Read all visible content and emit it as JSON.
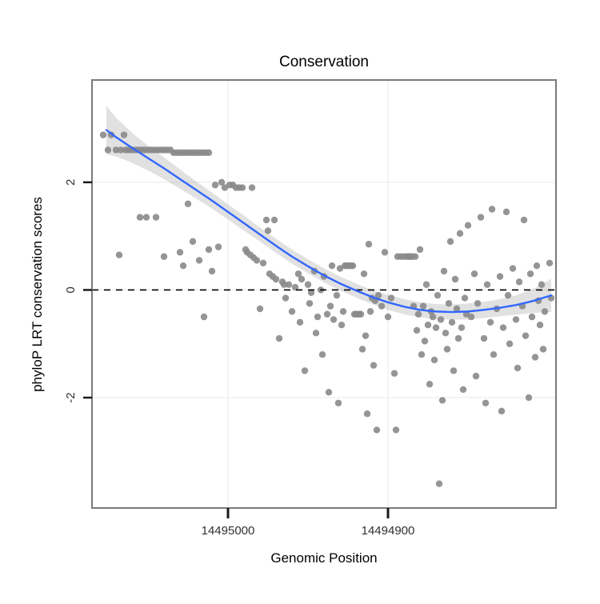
{
  "chart_data": {
    "type": "scatter",
    "title": "Conservation",
    "xlabel": "Genomic Position",
    "ylabel": "phyloP LRT conservation scores",
    "x_axis": {
      "reversed": true,
      "domain": [
        14495085,
        14494795
      ],
      "ticks": [
        {
          "value": 14495000,
          "label": "14495000"
        },
        {
          "value": 14494900,
          "label": "14494900"
        }
      ]
    },
    "y_axis": {
      "domain": [
        -4.05,
        3.9
      ],
      "ticks": [
        {
          "value": 2,
          "label": "2"
        },
        {
          "value": 0,
          "label": "0"
        },
        {
          "value": -2,
          "label": "-2"
        }
      ]
    },
    "reference_line": {
      "y": 0,
      "style": "dashed",
      "color": "#000000"
    },
    "colors": {
      "point": "#8a8a8a",
      "smooth_line": "#3366ff",
      "ribbon": "#9a9a9a",
      "ribbon_opacity": 0.3,
      "grid_major": "#ededed",
      "panel_border": "#7a7a7a",
      "tick": "#1a1a1a"
    },
    "points": [
      [
        14495078,
        2.88
      ],
      [
        14495075,
        2.6
      ],
      [
        14495073,
        2.88
      ],
      [
        14495070,
        2.6
      ],
      [
        14495068,
        0.65
      ],
      [
        14495067,
        2.6
      ],
      [
        14495065,
        2.88
      ],
      [
        14495064,
        2.6
      ],
      [
        14495062,
        2.6
      ],
      [
        14495060,
        2.6
      ],
      [
        14495058,
        2.6
      ],
      [
        14495056,
        2.6
      ],
      [
        14495055,
        1.35
      ],
      [
        14495054,
        2.6
      ],
      [
        14495052,
        2.6
      ],
      [
        14495051,
        1.35
      ],
      [
        14495050,
        2.6
      ],
      [
        14495048,
        2.6
      ],
      [
        14495046,
        2.6
      ],
      [
        14495045,
        1.35
      ],
      [
        14495044,
        2.6
      ],
      [
        14495042,
        2.6
      ],
      [
        14495040,
        0.62
      ],
      [
        14495040,
        2.6
      ],
      [
        14495038,
        2.6
      ],
      [
        14495036,
        2.6
      ],
      [
        14495034,
        2.55
      ],
      [
        14495032,
        2.55
      ],
      [
        14495030,
        2.55
      ],
      [
        14495028,
        2.55
      ],
      [
        14495026,
        2.55
      ],
      [
        14495024,
        2.55
      ],
      [
        14495022,
        2.55
      ],
      [
        14495020,
        2.55
      ],
      [
        14495018,
        2.55
      ],
      [
        14495016,
        2.55
      ],
      [
        14495014,
        2.55
      ],
      [
        14495012,
        2.55
      ],
      [
        14495030,
        0.7
      ],
      [
        14495028,
        0.45
      ],
      [
        14495025,
        1.6
      ],
      [
        14495022,
        0.9
      ],
      [
        14495018,
        0.55
      ],
      [
        14495015,
        -0.5
      ],
      [
        14495012,
        0.75
      ],
      [
        14495010,
        0.35
      ],
      [
        14495008,
        1.95
      ],
      [
        14495006,
        0.8
      ],
      [
        14495004,
        2.0
      ],
      [
        14495002,
        1.9
      ],
      [
        14494999,
        1.95
      ],
      [
        14494997,
        1.95
      ],
      [
        14494995,
        1.9
      ],
      [
        14494993,
        1.9
      ],
      [
        14494991,
        1.9
      ],
      [
        14494989,
        0.75
      ],
      [
        14494988,
        0.7
      ],
      [
        14494986,
        0.65
      ],
      [
        14494985,
        1.9
      ],
      [
        14494984,
        0.6
      ],
      [
        14494982,
        0.55
      ],
      [
        14494980,
        -0.35
      ],
      [
        14494978,
        0.5
      ],
      [
        14494976,
        1.3
      ],
      [
        14494975,
        1.1
      ],
      [
        14494974,
        0.3
      ],
      [
        14494972,
        0.25
      ],
      [
        14494971,
        1.3
      ],
      [
        14494970,
        0.2
      ],
      [
        14494968,
        -0.9
      ],
      [
        14494966,
        0.15
      ],
      [
        14494965,
        0.1
      ],
      [
        14494964,
        -0.15
      ],
      [
        14494962,
        0.1
      ],
      [
        14494960,
        -0.4
      ],
      [
        14494958,
        0.05
      ],
      [
        14494956,
        0.3
      ],
      [
        14494955,
        -0.6
      ],
      [
        14494954,
        0.2
      ],
      [
        14494952,
        -1.5
      ],
      [
        14494950,
        0.1
      ],
      [
        14494949,
        -0.25
      ],
      [
        14494948,
        -0.05
      ],
      [
        14494946,
        0.35
      ],
      [
        14494945,
        -0.8
      ],
      [
        14494944,
        -0.5
      ],
      [
        14494942,
        0.0
      ],
      [
        14494941,
        -1.2
      ],
      [
        14494940,
        0.25
      ],
      [
        14494938,
        -0.45
      ],
      [
        14494937,
        -1.9
      ],
      [
        14494936,
        -0.3
      ],
      [
        14494935,
        0.45
      ],
      [
        14494934,
        -0.55
      ],
      [
        14494932,
        -0.1
      ],
      [
        14494931,
        -2.1
      ],
      [
        14494930,
        0.4
      ],
      [
        14494929,
        -0.65
      ],
      [
        14494928,
        -0.4
      ],
      [
        14494927,
        0.45
      ],
      [
        14494926,
        0.45
      ],
      [
        14494925,
        0.45
      ],
      [
        14494924,
        0.45
      ],
      [
        14494923,
        0.45
      ],
      [
        14494922,
        0.45
      ],
      [
        14494921,
        -0.45
      ],
      [
        14494920,
        -0.45
      ],
      [
        14494919,
        -0.45
      ],
      [
        14494918,
        -0.45
      ],
      [
        14494917,
        -0.45
      ],
      [
        14494916,
        -1.1
      ],
      [
        14494915,
        0.3
      ],
      [
        14494914,
        -0.85
      ],
      [
        14494913,
        -2.3
      ],
      [
        14494912,
        0.85
      ],
      [
        14494911,
        -0.4
      ],
      [
        14494910,
        -0.15
      ],
      [
        14494909,
        -1.4
      ],
      [
        14494908,
        -0.2
      ],
      [
        14494907,
        -2.6
      ],
      [
        14494906,
        -0.1
      ],
      [
        14494904,
        -0.3
      ],
      [
        14494902,
        0.7
      ],
      [
        14494900,
        -0.5
      ],
      [
        14494898,
        -0.15
      ],
      [
        14494896,
        -1.55
      ],
      [
        14494895,
        -2.6
      ],
      [
        14494894,
        0.62
      ],
      [
        14494892,
        0.62
      ],
      [
        14494890,
        0.62
      ],
      [
        14494888,
        0.62
      ],
      [
        14494887,
        0.62
      ],
      [
        14494886,
        0.62
      ],
      [
        14494885,
        0.62
      ],
      [
        14494884,
        -0.3
      ],
      [
        14494883,
        0.62
      ],
      [
        14494882,
        -0.75
      ],
      [
        14494881,
        -0.45
      ],
      [
        14494880,
        0.75
      ],
      [
        14494879,
        -1.2
      ],
      [
        14494878,
        -0.3
      ],
      [
        14494877,
        -0.95
      ],
      [
        14494876,
        0.1
      ],
      [
        14494875,
        -0.65
      ],
      [
        14494874,
        -1.75
      ],
      [
        14494873,
        -0.4
      ],
      [
        14494872,
        -0.5
      ],
      [
        14494871,
        -1.3
      ],
      [
        14494870,
        -0.7
      ],
      [
        14494869,
        -0.1
      ],
      [
        14494868,
        -3.6
      ],
      [
        14494867,
        -0.55
      ],
      [
        14494866,
        -2.05
      ],
      [
        14494865,
        0.35
      ],
      [
        14494864,
        -0.8
      ],
      [
        14494863,
        -1.1
      ],
      [
        14494862,
        -0.25
      ],
      [
        14494861,
        0.9
      ],
      [
        14494860,
        -0.6
      ],
      [
        14494859,
        -1.5
      ],
      [
        14494858,
        0.2
      ],
      [
        14494857,
        -0.35
      ],
      [
        14494856,
        -0.9
      ],
      [
        14494855,
        1.05
      ],
      [
        14494854,
        -0.7
      ],
      [
        14494853,
        -1.85
      ],
      [
        14494852,
        -0.15
      ],
      [
        14494851,
        -0.45
      ],
      [
        14494850,
        1.2
      ],
      [
        14494848,
        -0.5
      ],
      [
        14494846,
        0.3
      ],
      [
        14494845,
        -1.6
      ],
      [
        14494844,
        -0.25
      ],
      [
        14494842,
        1.35
      ],
      [
        14494840,
        -0.9
      ],
      [
        14494839,
        -2.1
      ],
      [
        14494838,
        0.1
      ],
      [
        14494836,
        -0.6
      ],
      [
        14494835,
        1.5
      ],
      [
        14494834,
        -1.2
      ],
      [
        14494832,
        -0.35
      ],
      [
        14494830,
        0.25
      ],
      [
        14494829,
        -2.25
      ],
      [
        14494828,
        -0.7
      ],
      [
        14494826,
        1.45
      ],
      [
        14494825,
        -0.1
      ],
      [
        14494824,
        -1.0
      ],
      [
        14494822,
        0.4
      ],
      [
        14494820,
        -0.55
      ],
      [
        14494819,
        -1.45
      ],
      [
        14494818,
        0.15
      ],
      [
        14494816,
        -0.3
      ],
      [
        14494815,
        1.3
      ],
      [
        14494814,
        -0.85
      ],
      [
        14494812,
        -2.0
      ],
      [
        14494811,
        0.3
      ],
      [
        14494810,
        -0.5
      ],
      [
        14494808,
        -1.25
      ],
      [
        14494807,
        0.45
      ],
      [
        14494806,
        -0.2
      ],
      [
        14494805,
        -0.65
      ],
      [
        14494804,
        0.1
      ],
      [
        14494803,
        -1.1
      ],
      [
        14494802,
        -0.4
      ],
      [
        14494799,
        0.5
      ],
      [
        14494798,
        -0.15
      ]
    ],
    "smooth": {
      "line": [
        [
          14495076,
          2.97
        ],
        [
          14495070,
          2.84
        ],
        [
          14495060,
          2.64
        ],
        [
          14495050,
          2.45
        ],
        [
          14495040,
          2.26
        ],
        [
          14495030,
          2.06
        ],
        [
          14495020,
          1.86
        ],
        [
          14495010,
          1.66
        ],
        [
          14495000,
          1.45
        ],
        [
          14494990,
          1.24
        ],
        [
          14494980,
          1.03
        ],
        [
          14494970,
          0.82
        ],
        [
          14494960,
          0.62
        ],
        [
          14494950,
          0.44
        ],
        [
          14494940,
          0.27
        ],
        [
          14494930,
          0.12
        ],
        [
          14494920,
          -0.01
        ],
        [
          14494910,
          -0.13
        ],
        [
          14494900,
          -0.23
        ],
        [
          14494890,
          -0.31
        ],
        [
          14494880,
          -0.37
        ],
        [
          14494870,
          -0.4
        ],
        [
          14494860,
          -0.41
        ],
        [
          14494850,
          -0.4
        ],
        [
          14494840,
          -0.37
        ],
        [
          14494830,
          -0.33
        ],
        [
          14494820,
          -0.28
        ],
        [
          14494810,
          -0.21
        ],
        [
          14494800,
          -0.12
        ],
        [
          14494798,
          -0.1
        ]
      ],
      "ribbon_halfwidth": [
        0.45,
        0.36,
        0.28,
        0.23,
        0.2,
        0.18,
        0.16,
        0.15,
        0.14,
        0.14,
        0.13,
        0.13,
        0.13,
        0.13,
        0.13,
        0.13,
        0.13,
        0.13,
        0.14,
        0.14,
        0.14,
        0.14,
        0.14,
        0.15,
        0.15,
        0.16,
        0.18,
        0.22,
        0.29,
        0.31
      ]
    }
  }
}
